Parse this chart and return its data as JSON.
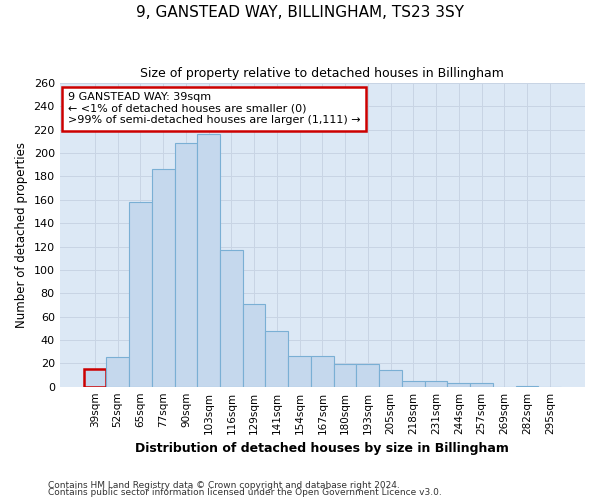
{
  "title": "9, GANSTEAD WAY, BILLINGHAM, TS23 3SY",
  "subtitle": "Size of property relative to detached houses in Billingham",
  "xlabel": "Distribution of detached houses by size in Billingham",
  "ylabel": "Number of detached properties",
  "categories": [
    "39sqm",
    "52sqm",
    "65sqm",
    "77sqm",
    "90sqm",
    "103sqm",
    "116sqm",
    "129sqm",
    "141sqm",
    "154sqm",
    "167sqm",
    "180sqm",
    "193sqm",
    "205sqm",
    "218sqm",
    "231sqm",
    "244sqm",
    "257sqm",
    "269sqm",
    "282sqm",
    "295sqm"
  ],
  "values": [
    15,
    25,
    158,
    186,
    209,
    216,
    117,
    71,
    48,
    26,
    26,
    19,
    19,
    14,
    5,
    5,
    3,
    3,
    0,
    1,
    0
  ],
  "bar_color": "#c5d8ed",
  "bar_edge_color": "#7aafd4",
  "highlight_index": 0,
  "highlight_edge_color": "#cc0000",
  "ylim": [
    0,
    260
  ],
  "yticks": [
    0,
    20,
    40,
    60,
    80,
    100,
    120,
    140,
    160,
    180,
    200,
    220,
    240,
    260
  ],
  "grid_color": "#c8d4e4",
  "background_color": "#dce8f5",
  "annotation_line1": "9 GANSTEAD WAY: 39sqm",
  "annotation_line2": "← <1% of detached houses are smaller (0)",
  "annotation_line3": ">99% of semi-detached houses are larger (1,111) →",
  "annotation_box_color": "#ffffff",
  "annotation_box_edge": "#cc0000",
  "footer1": "Contains HM Land Registry data © Crown copyright and database right 2024.",
  "footer2": "Contains public sector information licensed under the Open Government Licence v3.0."
}
